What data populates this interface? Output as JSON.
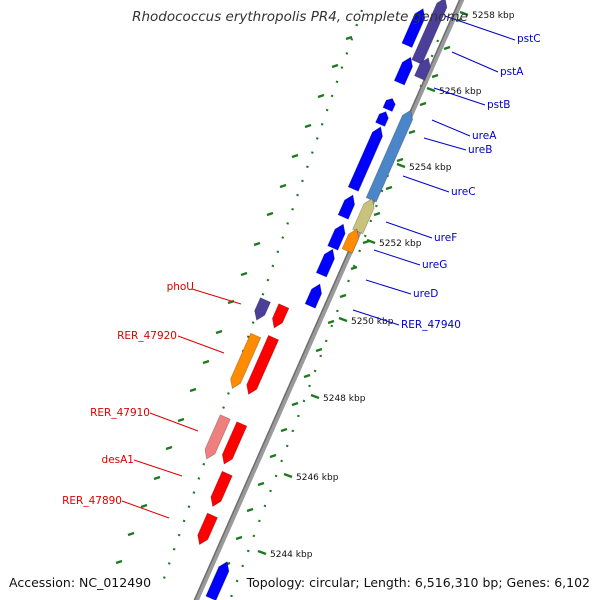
{
  "title": "Rhodococcus erythropolis PR4, complete genome",
  "footer": {
    "accession": "Accession: NC_012490",
    "topology": "Topology: circular; Length: 6,516,310 bp; Genes: 6,102"
  },
  "colors": {
    "forward_gene": "#0000ff",
    "reverse_gene": "#ff0000",
    "reverse_gene_light": "#f08080",
    "operon_purple": "#4b3f9a",
    "operon_steel": "#4a86c8",
    "operon_khaki": "#c8c27a",
    "operon_orange": "#ff8c00",
    "backbone": "#8a8a8a",
    "dotted_track": "#1e7a1e",
    "forward_label": "#0000cc",
    "reverse_label": "#dd0000"
  },
  "ticks": [
    "5258 kbp",
    "5256 kbp",
    "5254 kbp",
    "5252 kbp",
    "5250 kbp",
    "5248 kbp",
    "5246 kbp",
    "5244 kbp"
  ],
  "forward_labels": [
    "pstC",
    "pstA",
    "pstB",
    "ureA",
    "ureB",
    "ureC",
    "ureF",
    "ureG",
    "ureD",
    "RER_47940"
  ],
  "reverse_labels": [
    "phoU",
    "RER_47920",
    "RER_47910",
    "desA1",
    "RER_47890"
  ]
}
